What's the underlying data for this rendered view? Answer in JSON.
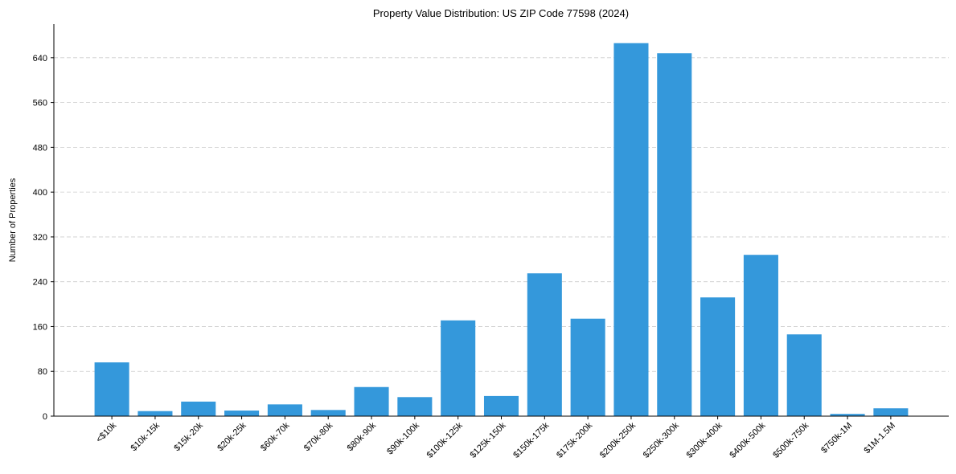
{
  "chart_data": {
    "type": "bar",
    "title": "Property Value Distribution: US ZIP Code 77598 (2024)",
    "xlabel": "",
    "ylabel": "Number of Properties",
    "categories": [
      "<$10k",
      "$10k-15k",
      "$15k-20k",
      "$20k-25k",
      "$60k-70k",
      "$70k-80k",
      "$80k-90k",
      "$90k-100k",
      "$100k-125k",
      "$125k-150k",
      "$150k-175k",
      "$175k-200k",
      "$200k-250k",
      "$250k-300k",
      "$300k-400k",
      "$400k-500k",
      "$500k-750k",
      "$750k-1M",
      "$1M-1.5M"
    ],
    "values": [
      96,
      9,
      26,
      10,
      21,
      11,
      52,
      34,
      171,
      36,
      255,
      174,
      666,
      648,
      212,
      288,
      146,
      4,
      14
    ],
    "ylim": [
      0,
      700
    ],
    "yticks": [
      0,
      80,
      160,
      240,
      320,
      400,
      480,
      560,
      640
    ],
    "grid": "y-dashed",
    "bar_color": "#3498db",
    "grid_color": "#cccccc"
  }
}
